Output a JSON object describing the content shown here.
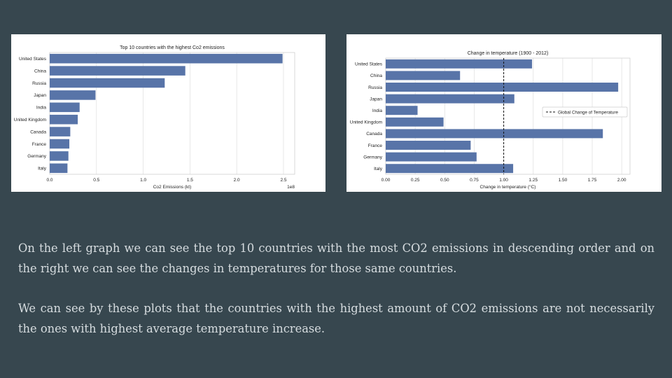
{
  "colors": {
    "background": "#37474f",
    "bar": "#5874a8",
    "grid": "#e2e2e2",
    "caption_text": "#d7dde0"
  },
  "chart_data": [
    {
      "type": "bar",
      "orientation": "horizontal",
      "title": "Top 10 countries with the highest Co2 emissions",
      "xlabel": "Co2 Emissions (kt)",
      "ylabel": "",
      "offset_label": "1e8",
      "categories": [
        "United States",
        "China",
        "Russia",
        "Japan",
        "India",
        "United Kingdom",
        "Canada",
        "France",
        "Germany",
        "Italy"
      ],
      "values": [
        2.49,
        1.45,
        1.23,
        0.49,
        0.32,
        0.3,
        0.22,
        0.21,
        0.2,
        0.19
      ],
      "xlim": [
        0,
        2.62
      ],
      "xticks": [
        "0.0",
        "0.5",
        "1.0",
        "1.5",
        "2.0",
        "2.5"
      ],
      "xtick_values": [
        0,
        0.5,
        1.0,
        1.5,
        2.0,
        2.5
      ],
      "grid": true
    },
    {
      "type": "bar",
      "orientation": "horizontal",
      "title": "Change in temperature (1900 - 2012)",
      "xlabel": "Change in temperature (°C)",
      "ylabel": "",
      "categories": [
        "United States",
        "China",
        "Russia",
        "Japan",
        "India",
        "United Kingdom",
        "Canada",
        "France",
        "Germany",
        "Italy"
      ],
      "values": [
        1.24,
        0.63,
        1.97,
        1.09,
        0.27,
        0.49,
        1.84,
        0.72,
        0.77,
        1.08
      ],
      "xlim": [
        0,
        2.07
      ],
      "xticks": [
        "0.00",
        "0.25",
        "0.50",
        "0.75",
        "1.00",
        "1.25",
        "1.50",
        "1.75",
        "2.00"
      ],
      "xtick_values": [
        0,
        0.25,
        0.5,
        0.75,
        1.0,
        1.25,
        1.5,
        1.75,
        2.0
      ],
      "reference_line": {
        "x": 1.0,
        "style": "dashed",
        "label": "Global Change of Temperature"
      },
      "legend": "right",
      "grid": true
    }
  ],
  "text": {
    "paragraph_1": "On the left graph we can see the top 10 countries with the most CO2 emissions in descending order and on the right  we can see the changes in temperatures for those same countries.",
    "paragraph_2": "We can see by these plots that the countries with the highest amount of CO2 emissions are not necessarily the ones with highest average temperature increase."
  }
}
